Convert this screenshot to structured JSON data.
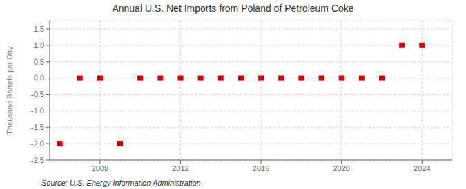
{
  "chart_data": {
    "type": "scatter",
    "title": "Annual U.S. Net Imports from Poland of Petroleum Coke",
    "ylabel": "Thousand Barrels per Day",
    "annotations": [
      "Source: U.S. Energy Information Administration"
    ],
    "x": [
      2006,
      2007,
      2008,
      2009,
      2010,
      2011,
      2012,
      2013,
      2014,
      2015,
      2016,
      2017,
      2018,
      2019,
      2020,
      2021,
      2022,
      2023,
      2024
    ],
    "values": [
      -2.0,
      0.0,
      0.0,
      -2.0,
      0.0,
      0.0,
      0.0,
      0.0,
      0.0,
      0.0,
      0.0,
      0.0,
      0.0,
      0.0,
      0.0,
      0.0,
      0.0,
      1.0,
      1.0
    ],
    "color": "#cc0000",
    "marker": "square",
    "xlim": [
      2005.5,
      2025.5
    ],
    "xticks": [
      2008,
      2012,
      2016,
      2020,
      2024
    ],
    "ylim": [
      -2.5,
      1.75
    ],
    "yticks": [
      -2.5,
      {
        "value": -2,
        "label": "-2.0"
      },
      -1.5,
      {
        "value": -1,
        "label": "-1.0"
      },
      -0.5,
      {
        "value": 0,
        "label": "0.0"
      },
      0.5,
      {
        "value": 1,
        "label": "1.0"
      },
      1.5
    ],
    "grid": true
  }
}
